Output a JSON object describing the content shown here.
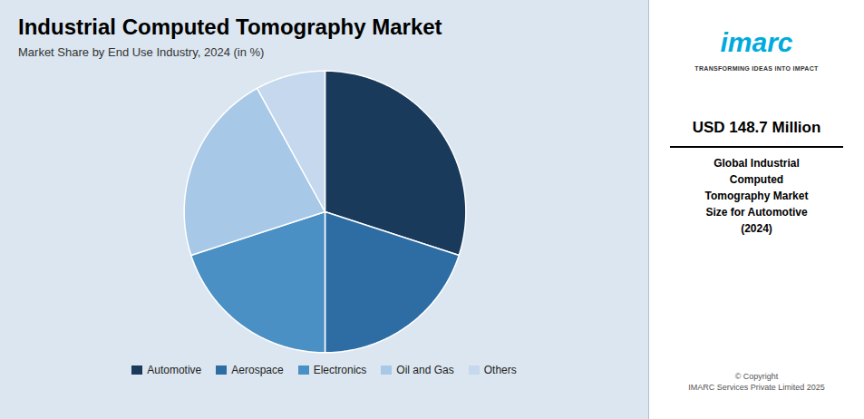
{
  "chart_data": {
    "type": "pie",
    "title": "Industrial Computed Tomography Market",
    "subtitle": "Market Share by End Use Industry, 2024 (in %)",
    "categories": [
      "Automotive",
      "Aerospace",
      "Electronics",
      "Oil and Gas",
      "Others"
    ],
    "values": [
      30,
      20,
      20,
      22,
      8
    ],
    "colors": [
      "#1a3a5c",
      "#2e6da4",
      "#4a90c4",
      "#a8c8e8",
      "#c5d8ee"
    ],
    "legend": "bottom",
    "annotations": [
      "imarc",
      "TRANSFORMING IDEAS INTO IMPACT",
      "USD 148.7 Million",
      "Global Industrial\nComputed\nTomography Market\nSize for Automotive\n(2024)",
      "© Copyright\nIMARC Services Private Limited 2025"
    ]
  }
}
